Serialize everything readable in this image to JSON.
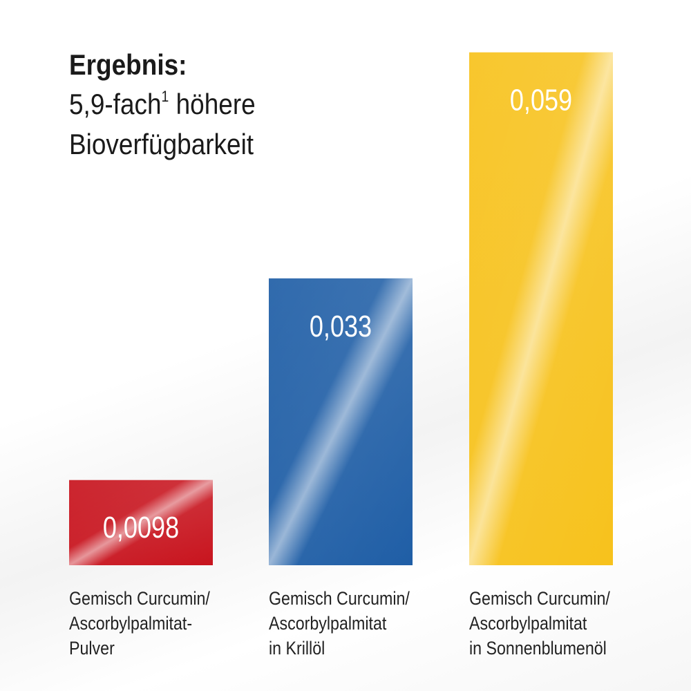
{
  "headline": {
    "bold": "Ergebnis:",
    "line1_main": "5,9-fach",
    "line1_sup": "1",
    "line1_rest": " höhere",
    "line2": "Bioverfügbarkeit"
  },
  "chart_data": {
    "type": "bar",
    "categories": [
      [
        "Gemisch Curcumin/",
        "Ascorbylpalmitat-",
        "Pulver"
      ],
      [
        "Gemisch Curcumin/",
        "Ascorbylpalmitat",
        "in Krillöl"
      ],
      [
        "Gemisch Curcumin/",
        "Ascorbylpalmitat",
        "in Sonnenblumenöl"
      ]
    ],
    "values": [
      0.0098,
      0.033,
      0.059
    ],
    "value_labels": [
      "0,0098",
      "0,033",
      "0,059"
    ],
    "colors": [
      "#c8141e",
      "#1f5ea6",
      "#f7c21c"
    ],
    "ylim": [
      0,
      0.062
    ],
    "grid": false,
    "title": "",
    "xlabel": "",
    "ylabel": ""
  }
}
